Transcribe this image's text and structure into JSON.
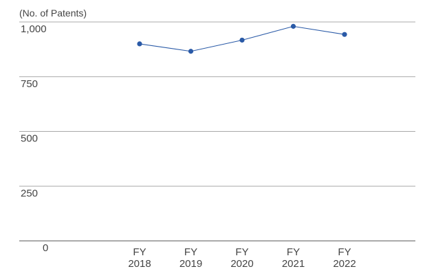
{
  "chart_data": {
    "type": "line",
    "ylabel": "(No. of Patents)",
    "categories": [
      [
        "FY",
        "2018"
      ],
      [
        "FY",
        "2019"
      ],
      [
        "FY",
        "2020"
      ],
      [
        "FY",
        "2021"
      ],
      [
        "FY",
        "2022"
      ]
    ],
    "series": [
      {
        "values": [
          900,
          866,
          917,
          980,
          943
        ]
      }
    ],
    "ylim": [
      0,
      1000
    ],
    "yticks": [
      {
        "value": 0,
        "label": "0"
      },
      {
        "value": 250,
        "label": "250"
      },
      {
        "value": 500,
        "label": "500"
      },
      {
        "value": 750,
        "label": "750"
      },
      {
        "value": 1000,
        "label": "1,000"
      }
    ],
    "grid": true,
    "legend": "none",
    "colors": {
      "series": "#2a5aa7",
      "grid": "#a8a8a8",
      "text": "#444444"
    }
  }
}
